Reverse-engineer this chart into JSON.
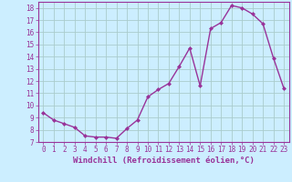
{
  "x": [
    0,
    1,
    2,
    3,
    4,
    5,
    6,
    7,
    8,
    9,
    10,
    11,
    12,
    13,
    14,
    15,
    16,
    17,
    18,
    19,
    20,
    21,
    22,
    23
  ],
  "y": [
    9.4,
    8.8,
    8.5,
    8.2,
    7.5,
    7.4,
    7.4,
    7.3,
    8.1,
    8.8,
    10.7,
    11.3,
    11.8,
    13.2,
    14.7,
    11.6,
    16.3,
    16.8,
    18.2,
    18.0,
    17.5,
    16.7,
    13.9,
    11.4
  ],
  "line_color": "#993399",
  "marker": "D",
  "marker_size": 2.0,
  "linewidth": 1.0,
  "bg_color": "#cceeff",
  "grid_color": "#aacccc",
  "xlabel": "Windchill (Refroidissement éolien,°C)",
  "xlabel_color": "#993399",
  "xlabel_fontsize": 6.5,
  "ylim": [
    7,
    18.5
  ],
  "yticks": [
    7,
    8,
    9,
    10,
    11,
    12,
    13,
    14,
    15,
    16,
    17,
    18
  ],
  "xticks": [
    0,
    1,
    2,
    3,
    4,
    5,
    6,
    7,
    8,
    9,
    10,
    11,
    12,
    13,
    14,
    15,
    16,
    17,
    18,
    19,
    20,
    21,
    22,
    23
  ],
  "tick_fontsize": 5.5,
  "tick_color": "#993399",
  "spine_color": "#993399"
}
